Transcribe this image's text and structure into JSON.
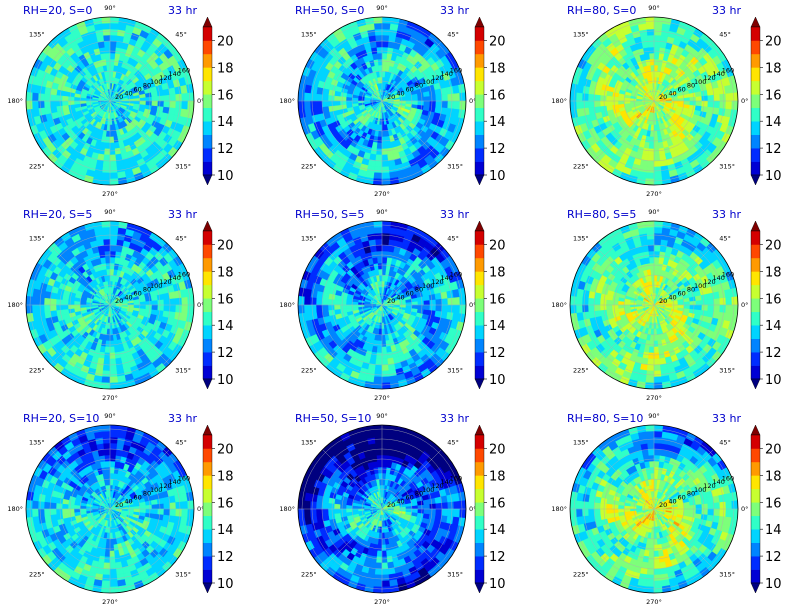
{
  "chart_data": {
    "type": "heatmap",
    "projection": "polar",
    "grid": true,
    "panel_time_label": "33 hr",
    "angle_tick_labels": [
      "90°",
      "45°",
      "0°",
      "315°",
      "270°",
      "225°",
      "180°",
      "135°"
    ],
    "radial_tick_labels": [
      "20",
      "40",
      "60",
      "80",
      "100",
      "120",
      "140",
      "160"
    ],
    "colorbar": {
      "tick_labels": [
        "10",
        "12",
        "14",
        "16",
        "18",
        "20"
      ],
      "range": [
        10,
        21
      ],
      "extend": "both",
      "colors": [
        "#00007f",
        "#0000d4",
        "#002cff",
        "#0084ff",
        "#00d4ff",
        "#30ffc7",
        "#7dff7a",
        "#c7ff30",
        "#ffe500",
        "#ff9a00",
        "#ff4800",
        "#d40000",
        "#7f0000"
      ]
    },
    "panels": [
      {
        "title": "RH=20, S=0",
        "mean_level": 14.2,
        "center_level": 14.0,
        "outer_level": 14.2,
        "spiral_strength": 0.3,
        "dry_sector_strength": 0.0
      },
      {
        "title": "RH=50, S=0",
        "mean_level": 13.5,
        "center_level": 14.0,
        "outer_level": 13.2,
        "spiral_strength": 1.2,
        "dry_sector_strength": 0.0
      },
      {
        "title": "RH=80, S=0",
        "mean_level": 15.2,
        "center_level": 16.5,
        "outer_level": 14.7,
        "spiral_strength": 0.8,
        "dry_sector_strength": 0.0
      },
      {
        "title": "RH=20, S=5",
        "mean_level": 14.0,
        "center_level": 14.0,
        "outer_level": 14.0,
        "spiral_strength": 0.6,
        "dry_sector_strength": 0.6
      },
      {
        "title": "RH=50, S=5",
        "mean_level": 13.6,
        "center_level": 14.0,
        "outer_level": 13.2,
        "spiral_strength": 1.1,
        "dry_sector_strength": 1.0
      },
      {
        "title": "RH=80, S=5",
        "mean_level": 15.0,
        "center_level": 16.4,
        "outer_level": 14.5,
        "spiral_strength": 0.9,
        "dry_sector_strength": 0.4
      },
      {
        "title": "RH=20, S=10",
        "mean_level": 13.8,
        "center_level": 14.0,
        "outer_level": 13.8,
        "spiral_strength": 0.5,
        "dry_sector_strength": 1.2
      },
      {
        "title": "RH=50, S=10",
        "mean_level": 12.8,
        "center_level": 14.5,
        "outer_level": 11.5,
        "spiral_strength": 1.1,
        "dry_sector_strength": 1.8
      },
      {
        "title": "RH=80, S=10",
        "mean_level": 15.0,
        "center_level": 16.8,
        "outer_level": 14.2,
        "spiral_strength": 1.0,
        "dry_sector_strength": 0.9
      }
    ]
  }
}
